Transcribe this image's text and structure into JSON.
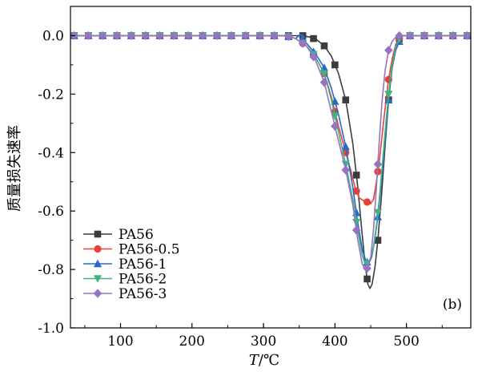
{
  "chart_data": {
    "type": "line",
    "xlabel": "T/℃",
    "xlabel_italic": "T",
    "xlabel_rest": "/℃",
    "ylabel": "质量损失速率",
    "panel_label": "(b)",
    "xlim": [
      30,
      590
    ],
    "ylim": [
      -1.0,
      0.1
    ],
    "x_ticks": [
      100,
      200,
      300,
      400,
      500
    ],
    "y_ticks": [
      0.0,
      -0.2,
      -0.4,
      -0.6,
      -0.8,
      -1.0
    ],
    "y_tick_labels": [
      "0.0",
      "-0.2",
      "-0.4",
      "-0.6",
      "-0.8",
      "-1.0"
    ],
    "legend_position": "bottom-left",
    "marker_x": [
      35,
      55,
      75,
      95,
      115,
      135,
      155,
      175,
      195,
      215,
      235,
      255,
      275,
      295,
      315,
      335,
      355,
      370,
      385,
      400,
      415,
      430,
      445,
      460,
      475,
      490,
      505,
      525,
      545,
      565,
      585
    ],
    "series": [
      {
        "name": "PA56",
        "color": "#3c3c3c",
        "marker": "square",
        "x": [
          30,
          100,
          200,
          260,
          300,
          330,
          345,
          355,
          365,
          375,
          385,
          395,
          405,
          415,
          425,
          432,
          438,
          442,
          446,
          449,
          452,
          456,
          460,
          465,
          470,
          475,
          480,
          485,
          490,
          495,
          500,
          520,
          590
        ],
        "y": [
          0,
          0,
          0,
          0,
          0,
          0,
          0,
          0,
          -0.005,
          -0.015,
          -0.035,
          -0.07,
          -0.13,
          -0.22,
          -0.37,
          -0.52,
          -0.68,
          -0.78,
          -0.85,
          -0.865,
          -0.85,
          -0.79,
          -0.7,
          -0.55,
          -0.38,
          -0.22,
          -0.1,
          -0.04,
          -0.01,
          0,
          0,
          0,
          0
        ]
      },
      {
        "name": "PA56-0.5",
        "color": "#e8403a",
        "marker": "circle",
        "x": [
          30,
          100,
          200,
          260,
          300,
          330,
          345,
          360,
          372,
          385,
          395,
          405,
          415,
          422,
          428,
          434,
          440,
          446,
          450,
          454,
          458,
          462,
          466,
          470,
          475,
          480,
          485,
          490,
          495,
          500,
          520,
          590
        ],
        "y": [
          0,
          0,
          0,
          0,
          0,
          0,
          -0.01,
          -0.035,
          -0.07,
          -0.13,
          -0.21,
          -0.31,
          -0.4,
          -0.46,
          -0.52,
          -0.555,
          -0.565,
          -0.57,
          -0.575,
          -0.56,
          -0.5,
          -0.43,
          -0.34,
          -0.25,
          -0.15,
          -0.08,
          -0.03,
          -0.01,
          0,
          0,
          0,
          0
        ]
      },
      {
        "name": "PA56-1",
        "color": "#2868c8",
        "marker": "triangle",
        "x": [
          30,
          100,
          200,
          260,
          300,
          330,
          345,
          352,
          358,
          365,
          375,
          385,
          395,
          405,
          415,
          425,
          432,
          438,
          443,
          447,
          451,
          455,
          460,
          465,
          470,
          475,
          480,
          485,
          490,
          495,
          500,
          520,
          590
        ],
        "y": [
          0,
          0,
          0,
          0,
          0,
          0,
          -0.01,
          0.005,
          -0.02,
          -0.04,
          -0.07,
          -0.11,
          -0.18,
          -0.27,
          -0.38,
          -0.52,
          -0.64,
          -0.73,
          -0.77,
          -0.78,
          -0.76,
          -0.71,
          -0.62,
          -0.5,
          -0.36,
          -0.22,
          -0.11,
          -0.05,
          -0.02,
          0,
          0,
          0,
          0
        ]
      },
      {
        "name": "PA56-2",
        "color": "#3fb27f",
        "marker": "triangle-down",
        "x": [
          30,
          100,
          200,
          260,
          300,
          330,
          345,
          360,
          372,
          385,
          395,
          405,
          415,
          425,
          432,
          438,
          442,
          446,
          450,
          454,
          458,
          462,
          466,
          470,
          475,
          480,
          485,
          490,
          495,
          500,
          520,
          590
        ],
        "y": [
          0,
          0,
          0,
          0,
          0,
          0,
          -0.01,
          -0.035,
          -0.07,
          -0.13,
          -0.22,
          -0.33,
          -0.44,
          -0.56,
          -0.67,
          -0.75,
          -0.78,
          -0.78,
          -0.76,
          -0.72,
          -0.65,
          -0.56,
          -0.45,
          -0.33,
          -0.2,
          -0.1,
          -0.04,
          -0.01,
          0,
          0,
          0,
          0
        ]
      },
      {
        "name": "PA56-3",
        "color": "#9a72c2",
        "marker": "diamond",
        "x": [
          30,
          100,
          200,
          260,
          300,
          330,
          345,
          360,
          372,
          385,
          395,
          405,
          415,
          425,
          432,
          438,
          442,
          446,
          450,
          454,
          458,
          462,
          466,
          470,
          475,
          480,
          485,
          490,
          495,
          500,
          520,
          590
        ],
        "y": [
          0,
          0,
          0,
          0,
          0,
          0,
          -0.01,
          -0.035,
          -0.08,
          -0.16,
          -0.26,
          -0.36,
          -0.46,
          -0.58,
          -0.7,
          -0.78,
          -0.8,
          -0.795,
          -0.76,
          -0.66,
          -0.52,
          -0.36,
          -0.22,
          -0.12,
          -0.05,
          -0.02,
          -0.005,
          0,
          0,
          0,
          0,
          0
        ]
      }
    ]
  }
}
